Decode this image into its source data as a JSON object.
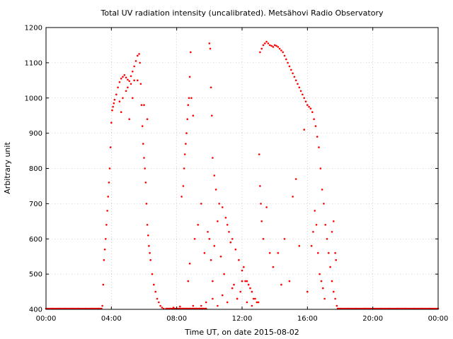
{
  "chart_data": {
    "type": "scatter",
    "title": "Total UV radiation intensity (uncalibrated). Metsähovi Radio Observatory",
    "xlabel": "Time UT, on date 2015-08-02",
    "ylabel": "Arbitrary unit",
    "xlim": [
      0,
      24
    ],
    "ylim": [
      400,
      1200
    ],
    "x_ticks": [
      0,
      4,
      8,
      12,
      16,
      20,
      24
    ],
    "x_tick_labels": [
      "00:00",
      "04:00",
      "08:00",
      "12:00",
      "16:00",
      "20:00",
      "00:00"
    ],
    "y_ticks": [
      400,
      500,
      600,
      700,
      800,
      900,
      1000,
      1100,
      1200
    ],
    "y_tick_labels": [
      "400",
      "500",
      "600",
      "700",
      "800",
      "900",
      "1000",
      "1100",
      "1200"
    ],
    "grid": true,
    "marker_color": "#ff0000",
    "series": [
      {
        "x": [
          0.0,
          0.4,
          0.8,
          1.2,
          1.6,
          2.0,
          2.4,
          2.8,
          3.2,
          3.45,
          3.5,
          3.55,
          3.6,
          3.65,
          3.7,
          3.75,
          3.8,
          3.85,
          3.9,
          3.95,
          4.0,
          4.05,
          4.1,
          4.15,
          4.2,
          4.3,
          4.4,
          4.5,
          4.6,
          4.7,
          4.8,
          4.9,
          5.0,
          5.1,
          5.2,
          5.3,
          5.4,
          5.5,
          5.6,
          5.7,
          5.75,
          5.8,
          5.85,
          5.9,
          5.95,
          6.0,
          6.05,
          6.1,
          6.15,
          6.2,
          6.25,
          6.3,
          6.35,
          6.4,
          6.5,
          6.6,
          6.7,
          6.8,
          6.9,
          7.0,
          7.1,
          7.2,
          4.5,
          4.7,
          4.9,
          5.0,
          5.2,
          5.4,
          4.6,
          5.1,
          5.3,
          5.6,
          6.0,
          6.2,
          7.4,
          7.6,
          7.8,
          8.0,
          8.2,
          8.4,
          8.6,
          8.8,
          9.0,
          9.2,
          9.4,
          9.6,
          9.8,
          8.3,
          8.4,
          8.45,
          8.5,
          8.55,
          8.6,
          8.65,
          8.7,
          8.75,
          8.8,
          8.85,
          8.9,
          9.0,
          8.7,
          8.8,
          9.1,
          9.3,
          9.5,
          9.7,
          9.9,
          10.0,
          10.1,
          10.2,
          10.3,
          10.5,
          10.7,
          10.9,
          11.1,
          11.3,
          11.5,
          11.7,
          11.9,
          12.1,
          12.3,
          12.5,
          12.7,
          12.9,
          10.0,
          10.05,
          10.1,
          10.15,
          10.2,
          10.3,
          10.4,
          10.6,
          10.8,
          11.0,
          11.2,
          11.4,
          11.6,
          11.8,
          12.0,
          12.2,
          12.4,
          12.6,
          12.8,
          13.0,
          9.5,
          9.8,
          10.2,
          10.5,
          10.8,
          11.1,
          11.4,
          11.7,
          12.0,
          12.3,
          12.6,
          13.1,
          13.2,
          13.3,
          13.4,
          13.5,
          13.6,
          13.7,
          13.8,
          13.9,
          14.0,
          14.1,
          14.2,
          14.3,
          14.4,
          14.5,
          14.6,
          14.7,
          14.8,
          14.9,
          15.0,
          15.1,
          15.2,
          15.3,
          15.4,
          15.5,
          15.6,
          15.7,
          15.8,
          15.9,
          16.0,
          16.1,
          16.2,
          13.05,
          13.1,
          13.15,
          13.2,
          13.3,
          13.5,
          13.7,
          13.9,
          14.2,
          14.4,
          14.6,
          14.9,
          15.1,
          15.3,
          15.5,
          15.8,
          16.0,
          16.3,
          16.4,
          16.5,
          16.6,
          16.7,
          16.8,
          16.9,
          17.0,
          17.1,
          17.2,
          17.3,
          17.4,
          17.5,
          17.6,
          17.7,
          17.8,
          16.25,
          16.35,
          16.45,
          16.55,
          16.65,
          16.75,
          16.85,
          16.95,
          17.05,
          17.5,
          17.6,
          17.7,
          17.75,
          18.0,
          18.5,
          19.0,
          19.5,
          20.0,
          20.5,
          21.0,
          21.5,
          22.0,
          22.5,
          23.0,
          23.5,
          24.0
        ],
        "y": [
          402,
          402,
          402,
          402,
          402,
          402,
          402,
          402,
          402,
          410,
          470,
          540,
          570,
          600,
          640,
          680,
          720,
          760,
          800,
          860,
          930,
          965,
          975,
          985,
          995,
          1010,
          1030,
          1045,
          1055,
          1060,
          1065,
          1058,
          1052,
          1048,
          1062,
          1075,
          1090,
          1105,
          1120,
          1125,
          1100,
          1040,
          980,
          920,
          870,
          830,
          800,
          760,
          700,
          640,
          610,
          580,
          560,
          540,
          500,
          470,
          450,
          430,
          420,
          410,
          405,
          402,
          990,
          1000,
          1020,
          1030,
          1040,
          1050,
          960,
          940,
          1000,
          1050,
          980,
          940,
          402,
          402,
          405,
          402,
          408,
          402,
          402,
          402,
          410,
          402,
          402,
          402,
          402,
          720,
          750,
          800,
          840,
          870,
          900,
          940,
          980,
          1000,
          1060,
          1130,
          1000,
          950,
          480,
          530,
          600,
          640,
          700,
          560,
          620,
          600,
          540,
          480,
          580,
          650,
          550,
          500,
          640,
          590,
          470,
          430,
          450,
          520,
          480,
          460,
          430,
          420,
          1155,
          1140,
          1030,
          950,
          830,
          780,
          740,
          700,
          690,
          660,
          620,
          600,
          570,
          540,
          510,
          480,
          470,
          450,
          430,
          420,
          410,
          420,
          430,
          410,
          440,
          420,
          460,
          430,
          480,
          420,
          410,
          1130,
          1140,
          1150,
          1155,
          1160,
          1155,
          1150,
          1148,
          1145,
          1150,
          1148,
          1145,
          1140,
          1135,
          1130,
          1120,
          1110,
          1100,
          1090,
          1080,
          1070,
          1060,
          1050,
          1040,
          1030,
          1020,
          1010,
          1000,
          990,
          980,
          975,
          970,
          840,
          750,
          700,
          650,
          600,
          690,
          560,
          520,
          560,
          470,
          600,
          480,
          720,
          770,
          580,
          910,
          450,
          960,
          940,
          920,
          890,
          860,
          800,
          740,
          700,
          640,
          600,
          560,
          520,
          480,
          450,
          430,
          410,
          580,
          620,
          680,
          640,
          560,
          500,
          480,
          460,
          430,
          620,
          650,
          560,
          540,
          402,
          402,
          402,
          402,
          402,
          402,
          402,
          402,
          402,
          402,
          402,
          402,
          402
        ]
      }
    ]
  }
}
